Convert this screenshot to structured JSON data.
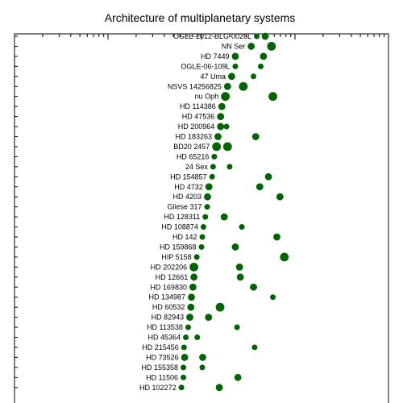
{
  "chart_data": {
    "type": "scatter",
    "title": "Architecture of multiplanetary systems",
    "x_scale": "log",
    "xlim": [
      0.01,
      100
    ],
    "marker_color": "#006400",
    "grid": false,
    "legend": "none",
    "systems": [
      {
        "name": "OGLE-2012-BLG-0026L",
        "planets": [
          {
            "a": 3.9,
            "size": 2
          },
          {
            "a": 4.8,
            "size": 3
          }
        ]
      },
      {
        "name": "NN Ser",
        "planets": [
          {
            "a": 3.4,
            "size": 3
          },
          {
            "a": 5.6,
            "size": 4
          }
        ]
      },
      {
        "name": "HD 7449",
        "planets": [
          {
            "a": 2.3,
            "size": 3
          },
          {
            "a": 4.6,
            "size": 3
          }
        ]
      },
      {
        "name": "OGLE-06-109L",
        "planets": [
          {
            "a": 2.3,
            "size": 2
          },
          {
            "a": 4.3,
            "size": 2
          }
        ]
      },
      {
        "name": "47 Uma",
        "planets": [
          {
            "a": 2.1,
            "size": 3
          },
          {
            "a": 3.6,
            "size": 2
          }
        ]
      },
      {
        "name": "NSVS 14256825",
        "planets": [
          {
            "a": 1.9,
            "size": 3
          },
          {
            "a": 2.8,
            "size": 4
          }
        ]
      },
      {
        "name": "nu Oph",
        "planets": [
          {
            "a": 1.8,
            "size": 4
          },
          {
            "a": 5.8,
            "size": 4
          }
        ]
      },
      {
        "name": "HD 114386",
        "planets": [
          {
            "a": 1.65,
            "size": 3
          }
        ]
      },
      {
        "name": "HD 47536",
        "planets": [
          {
            "a": 1.6,
            "size": 3
          }
        ]
      },
      {
        "name": "HD 200964",
        "planets": [
          {
            "a": 1.6,
            "size": 3
          },
          {
            "a": 1.85,
            "size": 2
          }
        ]
      },
      {
        "name": "HD 183263",
        "planets": [
          {
            "a": 1.5,
            "size": 3
          },
          {
            "a": 3.8,
            "size": 3
          }
        ]
      },
      {
        "name": "BD20 2457",
        "planets": [
          {
            "a": 1.45,
            "size": 4
          },
          {
            "a": 1.9,
            "size": 4
          }
        ]
      },
      {
        "name": "HD 65216",
        "planets": [
          {
            "a": 1.37,
            "size": 2
          }
        ]
      },
      {
        "name": "24 Sex",
        "planets": [
          {
            "a": 1.33,
            "size": 2
          },
          {
            "a": 2.0,
            "size": 2
          }
        ]
      },
      {
        "name": "HD 154857",
        "planets": [
          {
            "a": 1.3,
            "size": 2
          },
          {
            "a": 5.2,
            "size": 3
          }
        ]
      },
      {
        "name": "HD 4732",
        "planets": [
          {
            "a": 1.2,
            "size": 3
          },
          {
            "a": 4.2,
            "size": 3
          }
        ]
      },
      {
        "name": "HD 4203",
        "planets": [
          {
            "a": 1.16,
            "size": 3
          },
          {
            "a": 6.9,
            "size": 3
          }
        ]
      },
      {
        "name": "Gliese 317",
        "planets": [
          {
            "a": 1.15,
            "size": 2
          }
        ]
      },
      {
        "name": "HD 128311",
        "planets": [
          {
            "a": 1.1,
            "size": 2
          },
          {
            "a": 1.75,
            "size": 3
          }
        ]
      },
      {
        "name": "HD 108874",
        "planets": [
          {
            "a": 1.05,
            "size": 2
          },
          {
            "a": 2.7,
            "size": 2
          }
        ]
      },
      {
        "name": "HD 142",
        "planets": [
          {
            "a": 1.02,
            "size": 2
          },
          {
            "a": 6.4,
            "size": 3
          }
        ]
      },
      {
        "name": "HD 159868",
        "planets": [
          {
            "a": 1.0,
            "size": 2
          },
          {
            "a": 2.3,
            "size": 3
          }
        ]
      },
      {
        "name": "HIP 5158",
        "planets": [
          {
            "a": 0.89,
            "size": 2
          },
          {
            "a": 7.7,
            "size": 4
          }
        ]
      },
      {
        "name": "HD 202206",
        "planets": [
          {
            "a": 0.83,
            "size": 4
          },
          {
            "a": 2.55,
            "size": 3
          }
        ]
      },
      {
        "name": "HD 12661",
        "planets": [
          {
            "a": 0.83,
            "size": 3
          },
          {
            "a": 2.6,
            "size": 3
          }
        ]
      },
      {
        "name": "HD 169830",
        "planets": [
          {
            "a": 0.81,
            "size": 3
          },
          {
            "a": 3.6,
            "size": 3
          }
        ]
      },
      {
        "name": "HD 134987",
        "planets": [
          {
            "a": 0.78,
            "size": 3
          },
          {
            "a": 5.8,
            "size": 2
          }
        ]
      },
      {
        "name": "HD 60532",
        "planets": [
          {
            "a": 0.77,
            "size": 3
          },
          {
            "a": 1.58,
            "size": 4
          }
        ]
      },
      {
        "name": "HD 82943",
        "planets": [
          {
            "a": 0.75,
            "size": 3
          },
          {
            "a": 1.19,
            "size": 3
          }
        ]
      },
      {
        "name": "HD 113538",
        "planets": [
          {
            "a": 0.72,
            "size": 2
          },
          {
            "a": 2.4,
            "size": 2
          }
        ]
      },
      {
        "name": "HD 45364",
        "planets": [
          {
            "a": 0.68,
            "size": 2
          },
          {
            "a": 0.9,
            "size": 2
          }
        ]
      },
      {
        "name": "HD 215456",
        "planets": [
          {
            "a": 0.65,
            "size": 2
          },
          {
            "a": 3.7,
            "size": 2
          }
        ]
      },
      {
        "name": "HD 73526",
        "planets": [
          {
            "a": 0.66,
            "size": 3
          },
          {
            "a": 1.03,
            "size": 3
          }
        ]
      },
      {
        "name": "HD 155358",
        "planets": [
          {
            "a": 0.64,
            "size": 2
          },
          {
            "a": 1.02,
            "size": 2
          }
        ]
      },
      {
        "name": "HD 11506",
        "planets": [
          {
            "a": 0.64,
            "size": 2
          },
          {
            "a": 2.45,
            "size": 3
          }
        ]
      },
      {
        "name": "HD 102272",
        "planets": [
          {
            "a": 0.61,
            "size": 2
          },
          {
            "a": 1.55,
            "size": 3
          }
        ]
      }
    ]
  }
}
